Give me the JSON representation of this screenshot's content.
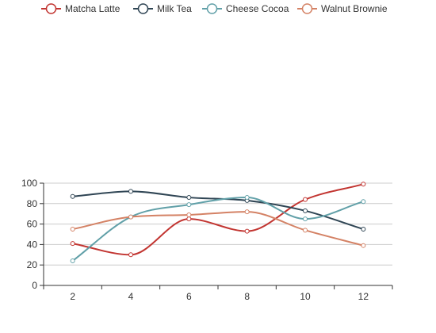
{
  "chart_data": {
    "type": "line",
    "smooth": true,
    "x": [
      2,
      4,
      6,
      8,
      10,
      12
    ],
    "xlim": [
      1,
      13
    ],
    "ylim": [
      0,
      100
    ],
    "yticks": [
      0,
      20,
      40,
      60,
      80,
      100
    ],
    "grid": "horizontal",
    "legend_position": "top",
    "series": [
      {
        "name": "Matcha Latte",
        "color": "#c23531",
        "values": [
          41,
          30,
          65,
          53,
          84,
          99
        ]
      },
      {
        "name": "Milk Tea",
        "color": "#2f4554",
        "values": [
          87,
          92,
          86,
          83,
          73,
          55
        ]
      },
      {
        "name": "Cheese Cocoa",
        "color": "#61a0a8",
        "values": [
          24,
          67,
          79,
          86,
          65,
          82
        ]
      },
      {
        "name": "Walnut Brownie",
        "color": "#d48265",
        "values": [
          55,
          67,
          69,
          72,
          54,
          39
        ]
      }
    ]
  }
}
